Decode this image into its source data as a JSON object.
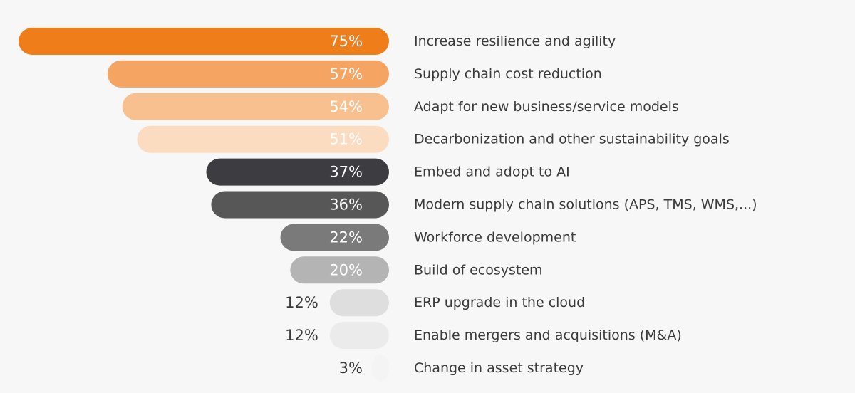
{
  "chart_data": {
    "type": "bar",
    "orientation": "horizontal",
    "direction": "right-to-left",
    "value_unit": "%",
    "categories": [
      "Increase resilience and agility",
      "Supply chain cost reduction",
      "Adapt for new business/service models",
      "Decarbonization and other sustainability goals",
      "Embed and adopt to AI",
      "Modern supply chain solutions (APS, TMS, WMS,...)",
      "Workforce development",
      "Build of ecosystem",
      "ERP upgrade in the cloud",
      "Enable mergers and acquisitions (M&A)",
      "Change in asset strategy"
    ],
    "values": [
      75,
      57,
      54,
      51,
      37,
      36,
      22,
      20,
      12,
      12,
      3
    ],
    "value_labels": [
      "75%",
      "57%",
      "54%",
      "51%",
      "37%",
      "36%",
      "22%",
      "20%",
      "12%",
      "12%",
      "3%"
    ],
    "bar_colors": [
      "#ef7d1a",
      "#f5a461",
      "#f9c08f",
      "#fcdcc0",
      "#3d3c41",
      "#575757",
      "#7a7a7a",
      "#b4b4b4",
      "#dedede",
      "#ebebeb",
      "#f4f4f4"
    ],
    "label_colors": [
      "#ffffff",
      "#ffffff",
      "#ffffff",
      "#ffffff",
      "#ffffff",
      "#ffffff",
      "#ffffff",
      "#ffffff",
      "#3a3a3a",
      "#3a3a3a",
      "#3a3a3a"
    ],
    "title": "",
    "xlabel": "",
    "ylabel": "",
    "xlim": [
      0,
      75
    ],
    "grid": false,
    "legend": "none"
  }
}
